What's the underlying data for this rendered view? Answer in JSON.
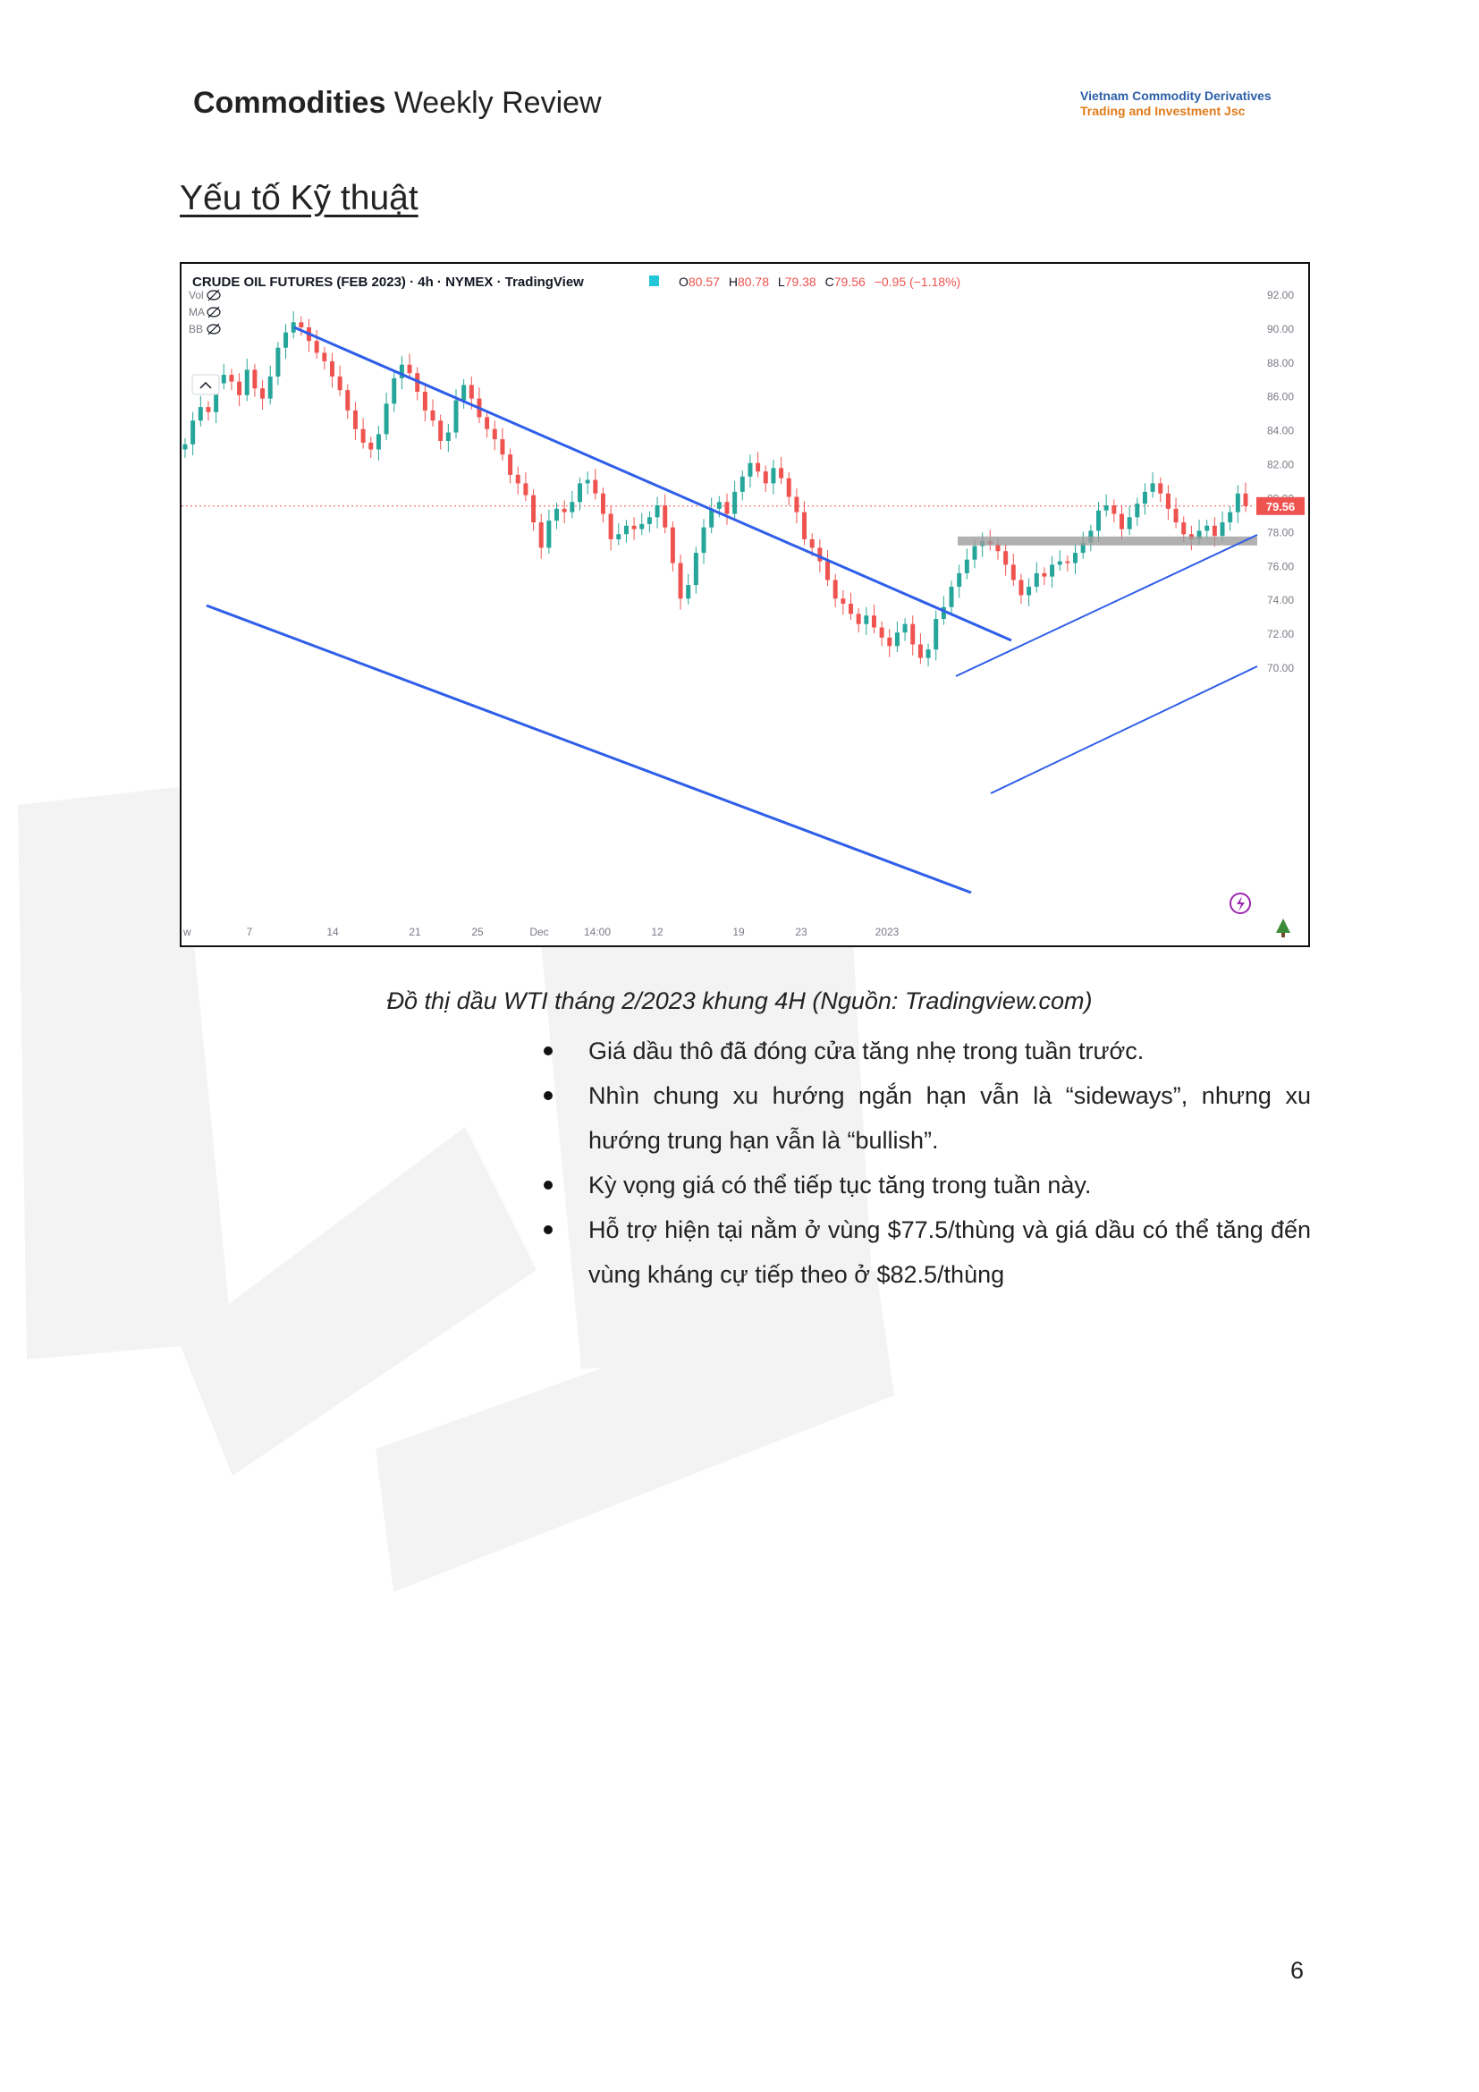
{
  "header": {
    "title_bold": "Commodities",
    "title_rest": "Weekly Review",
    "company_line1": "Vietnam Commodity Derivatives",
    "company_line2": "Trading and Investment Jsc"
  },
  "section_title": "Yếu tố Kỹ thuật",
  "chart_data": {
    "type": "candlestick",
    "title": "CRUDE OIL FUTURES (FEB 2023) · 4h · NYMEX · TradingView",
    "ohlc": {
      "O": "80.57",
      "H": "80.78",
      "L": "79.38",
      "C": "79.56",
      "change": "−0.95 (−1.18%)"
    },
    "indicators": [
      "Vol",
      "MA",
      "BB"
    ],
    "ylim": [
      70,
      92
    ],
    "y_ticks": [
      "92.00",
      "90.00",
      "88.00",
      "86.00",
      "84.00",
      "82.00",
      "80.00",
      "78.00",
      "76.00",
      "74.00",
      "72.00",
      "70.00"
    ],
    "x_ticks": [
      "w",
      "7",
      "14",
      "21",
      "25",
      "Dec",
      "14:00",
      "12",
      "19",
      "23",
      "2023"
    ],
    "last_price": 79.56,
    "last_price_label": "79.56",
    "colors": {
      "up": "#26a69a",
      "down": "#ef5350",
      "trendline": "#2f5ee8",
      "support": "#9e9e9e"
    },
    "support_level": 77.5,
    "close_series": [
      83.2,
      84.6,
      85.4,
      85.1,
      86.8,
      87.3,
      86.9,
      86.1,
      87.6,
      86.5,
      85.9,
      87.2,
      88.9,
      89.8,
      90.4,
      90.1,
      89.3,
      88.6,
      88.1,
      87.2,
      86.4,
      85.2,
      84.1,
      83.3,
      82.9,
      83.8,
      85.6,
      87.1,
      87.9,
      87.4,
      86.3,
      85.2,
      84.6,
      83.4,
      83.9,
      85.8,
      86.7,
      85.9,
      84.8,
      84.1,
      83.5,
      82.6,
      81.4,
      80.9,
      80.2,
      78.6,
      77.1,
      78.7,
      79.4,
      79.2,
      79.8,
      80.9,
      81.1,
      80.3,
      79.1,
      77.6,
      77.9,
      78.4,
      78.2,
      78.5,
      78.9,
      79.6,
      78.3,
      76.2,
      74.1,
      74.9,
      76.8,
      78.3,
      79.4,
      79.8,
      79.1,
      80.4,
      81.3,
      82.1,
      81.6,
      80.9,
      81.8,
      81.2,
      80.1,
      79.2,
      77.6,
      77.1,
      76.3,
      75.2,
      74.1,
      73.8,
      73.2,
      72.6,
      73.1,
      72.4,
      71.8,
      71.3,
      72.1,
      72.6,
      71.4,
      70.6,
      71.1,
      72.9,
      73.6,
      74.8,
      75.6,
      76.4,
      77.2,
      77.5,
      77.3,
      76.9,
      76.1,
      75.2,
      74.3,
      74.8,
      75.6,
      75.4,
      76.1,
      76.3,
      76.2,
      76.8,
      77.4,
      78.1,
      79.3,
      79.6,
      79.1,
      78.2,
      78.9,
      79.7,
      80.4,
      80.9,
      80.3,
      79.4,
      78.6,
      77.9,
      77.6,
      78.1,
      78.4,
      77.8,
      78.6,
      79.2,
      80.3,
      79.56
    ]
  },
  "caption": "Đồ thị dầu WTI tháng 2/2023 khung 4H (Nguồn: Tradingview.com)",
  "bullets": [
    "Giá dầu thô đã đóng cửa tăng nhẹ trong tuần trước.",
    "Nhìn chung xu hướng ngắn hạn vẫn là “sideways”, nhưng xu hướng trung hạn vẫn là “bullish”.",
    "Kỳ vọng giá có thể tiếp tục tăng trong tuần này.",
    "Hỗ trợ hiện tại nằm ở vùng $77.5/thùng và giá dầu có thể tăng đến vùng kháng cự tiếp theo ở $82.5/thùng"
  ],
  "page_number": "6"
}
